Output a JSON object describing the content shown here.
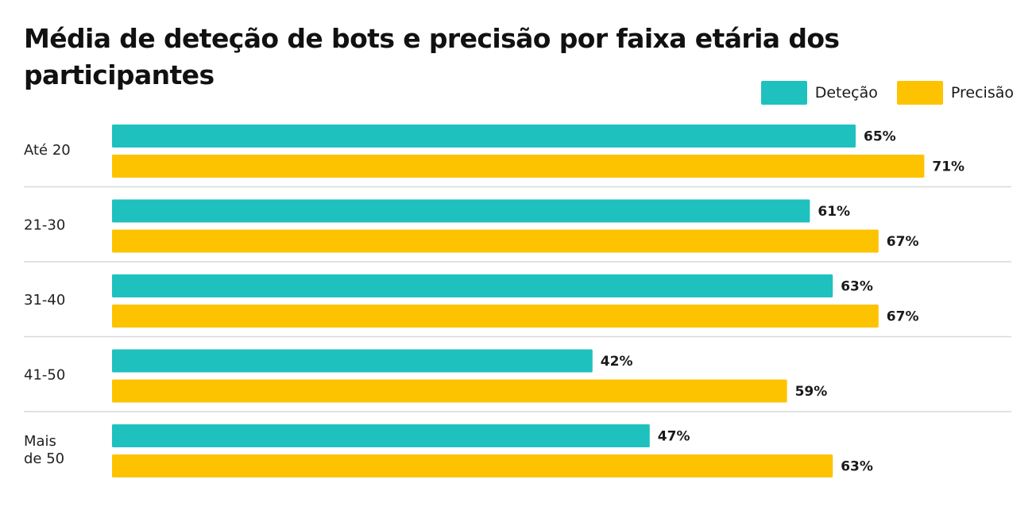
{
  "title": "Média de deteção  de bots e precisão por faixa etária dos participantes",
  "chart_data": {
    "type": "bar",
    "orientation": "horizontal",
    "title": "Média de deteção  de bots e precisão por faixa etária dos participantes",
    "categories": [
      "Até 20",
      "21-30",
      "31-40",
      "41-50",
      "Mais de 50"
    ],
    "category_lines": [
      [
        "Até 20"
      ],
      [
        "21-30"
      ],
      [
        "31-40"
      ],
      [
        "41-50"
      ],
      [
        "Mais",
        "de 50"
      ]
    ],
    "series": [
      {
        "name": "Deteção",
        "color": "#1fc1bf",
        "values": [
          65,
          61,
          63,
          42,
          47
        ],
        "labels": [
          "65%",
          "61%",
          "63%",
          "42%",
          "47%"
        ]
      },
      {
        "name": "Precisão",
        "color": "#fdc300",
        "values": [
          71,
          67,
          67,
          59,
          63
        ],
        "labels": [
          "71%",
          "67%",
          "67%",
          "59%",
          "63%"
        ]
      }
    ],
    "unit": "%",
    "legend_position": "top-right",
    "grid": false,
    "separators": true
  }
}
